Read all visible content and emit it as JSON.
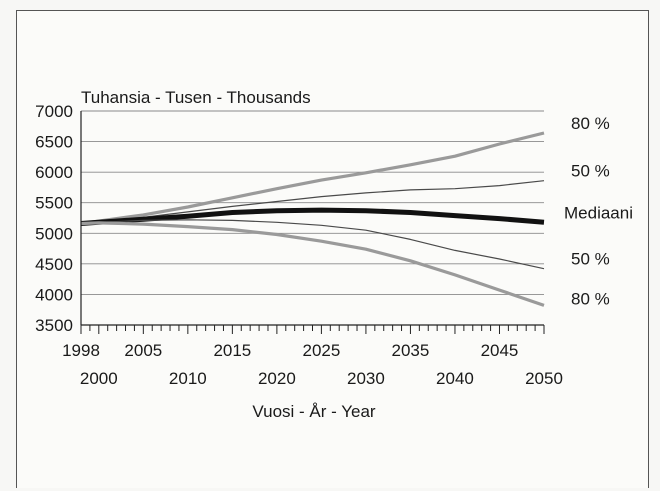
{
  "chart_data": {
    "type": "line",
    "unit_label": "Tuhansia - Tusen - Thousands",
    "xlabel": "Vuosi - År - Year",
    "ylabel": "",
    "xlim": [
      1998,
      2050
    ],
    "ylim": [
      3500,
      7000
    ],
    "yticks": [
      3500,
      4000,
      4500,
      5000,
      5500,
      6000,
      6500,
      7000
    ],
    "xticks_upper": [
      1998,
      2005,
      2015,
      2025,
      2035,
      2045
    ],
    "xticks_lower": [
      2000,
      2010,
      2020,
      2030,
      2040,
      2050
    ],
    "grid": "horizontal",
    "series": [
      {
        "name": "80 %",
        "style": "upper-80",
        "color": "#9a9a9a",
        "x": [
          1998,
          2000,
          2005,
          2010,
          2015,
          2020,
          2025,
          2030,
          2035,
          2040,
          2045,
          2050
        ],
        "y": [
          5160,
          5200,
          5300,
          5430,
          5580,
          5730,
          5870,
          5990,
          6120,
          6260,
          6460,
          6640
        ]
      },
      {
        "name": "50 %",
        "style": "upper-50",
        "color": "#4a4a4a",
        "x": [
          1998,
          2000,
          2005,
          2010,
          2015,
          2020,
          2025,
          2030,
          2035,
          2040,
          2045,
          2050
        ],
        "y": [
          5160,
          5190,
          5260,
          5350,
          5440,
          5520,
          5600,
          5660,
          5710,
          5730,
          5780,
          5860
        ]
      },
      {
        "name": "Mediaani",
        "style": "median",
        "color": "#111111",
        "x": [
          1998,
          2000,
          2005,
          2010,
          2015,
          2020,
          2025,
          2030,
          2035,
          2040,
          2045,
          2050
        ],
        "y": [
          5160,
          5180,
          5230,
          5280,
          5340,
          5370,
          5380,
          5370,
          5340,
          5290,
          5240,
          5180
        ]
      },
      {
        "name": "50 %",
        "style": "lower-50",
        "color": "#4a4a4a",
        "x": [
          1998,
          2000,
          2005,
          2010,
          2015,
          2020,
          2025,
          2030,
          2035,
          2040,
          2045,
          2050
        ],
        "y": [
          5160,
          5180,
          5210,
          5220,
          5210,
          5180,
          5130,
          5050,
          4900,
          4720,
          4580,
          4420
        ]
      },
      {
        "name": "80 %",
        "style": "lower-80",
        "color": "#9a9a9a",
        "x": [
          1998,
          2000,
          2005,
          2010,
          2015,
          2020,
          2025,
          2030,
          2035,
          2040,
          2045,
          2050
        ],
        "y": [
          5160,
          5170,
          5150,
          5110,
          5060,
          4980,
          4870,
          4740,
          4550,
          4320,
          4070,
          3820
        ]
      }
    ]
  }
}
